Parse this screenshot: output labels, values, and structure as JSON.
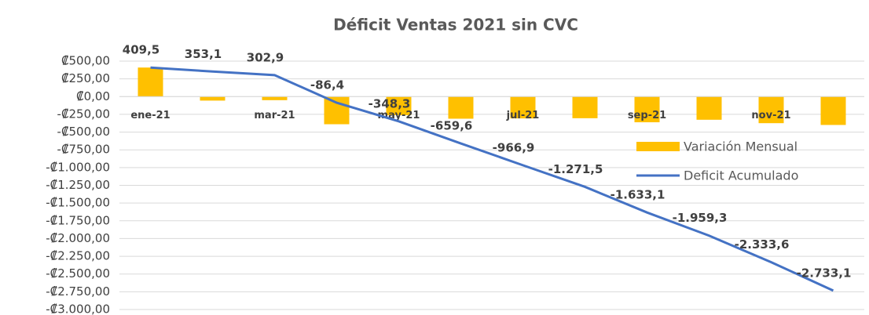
{
  "chart_data": {
    "type": "bar-line",
    "title": "Déficit Ventas 2021 sin CVC",
    "categories": [
      "ene-21",
      null,
      "mar-21",
      null,
      "may-21",
      null,
      "jul-21",
      null,
      "sep-21",
      null,
      "nov-21",
      null
    ],
    "series": [
      {
        "name": "Variación Mensual",
        "type": "bar",
        "color": "#FFC000",
        "values": [
          409.5,
          -56.4,
          -50.2,
          -389.3,
          -261.9,
          -311.3,
          -307.3,
          -304.6,
          -361.6,
          -326.2,
          -374.3,
          -399.5
        ]
      },
      {
        "name": "Deficit Acumulado",
        "type": "line",
        "color": "#4472C4",
        "values": [
          409.5,
          353.1,
          302.9,
          -86.4,
          -348.3,
          -659.6,
          -966.9,
          -1271.5,
          -1633.1,
          -1959.3,
          -2333.6,
          -2733.1
        ],
        "value_labels": [
          "409,5",
          "353,1",
          "302,9",
          "-86,4",
          "-348,3",
          "-659,6",
          "-966,9",
          "-1.271,5",
          "-1.633,1",
          "-1.959,3",
          "-2.333,6",
          "-2.733,1"
        ]
      }
    ],
    "ylim": [
      -3000,
      500
    ],
    "yticks": [
      {
        "value": 500,
        "label": "₡500,00"
      },
      {
        "value": 250,
        "label": "₡250,00"
      },
      {
        "value": 0,
        "label": "₡0,00"
      },
      {
        "value": -250,
        "label": "-₡250,00"
      },
      {
        "value": -500,
        "label": "-₡500,00"
      },
      {
        "value": -750,
        "label": "-₡750,00"
      },
      {
        "value": -1000,
        "label": "-₡1.000,00"
      },
      {
        "value": -1250,
        "label": "-₡1.250,00"
      },
      {
        "value": -1500,
        "label": "-₡1.500,00"
      },
      {
        "value": -1750,
        "label": "-₡1.750,00"
      },
      {
        "value": -2000,
        "label": "-₡2.000,00"
      },
      {
        "value": -2250,
        "label": "-₡2.250,00"
      },
      {
        "value": -2500,
        "label": "-₡2.500,00"
      },
      {
        "value": -2750,
        "label": "-₡2.750,00"
      },
      {
        "value": -3000,
        "label": "-₡3.000,00"
      }
    ],
    "grid": true,
    "legend": "right"
  }
}
